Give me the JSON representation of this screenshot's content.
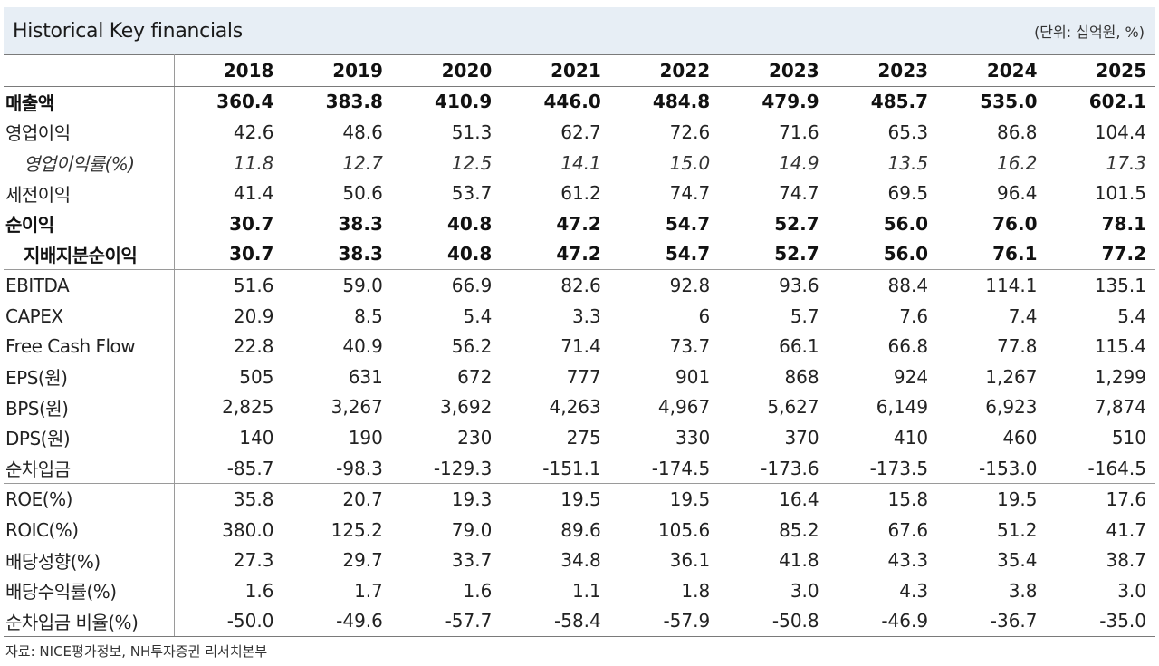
{
  "header": {
    "title": "Historical Key financials",
    "unit": "(단위: 십억원, %)"
  },
  "table": {
    "years": [
      "2018",
      "2019",
      "2020",
      "2021",
      "2022",
      "2023",
      "2023",
      "2024",
      "2025"
    ],
    "rows": [
      {
        "label": "매출액",
        "style": "bold",
        "values": [
          "360.4",
          "383.8",
          "410.9",
          "446.0",
          "484.8",
          "479.9",
          "485.7",
          "535.0",
          "602.1"
        ]
      },
      {
        "label": "영업이익",
        "style": "",
        "values": [
          "42.6",
          "48.6",
          "51.3",
          "62.7",
          "72.6",
          "71.6",
          "65.3",
          "86.8",
          "104.4"
        ]
      },
      {
        "label": "영업이익률(%)",
        "style": "italic indent",
        "values": [
          "11.8",
          "12.7",
          "12.5",
          "14.1",
          "15.0",
          "14.9",
          "13.5",
          "16.2",
          "17.3"
        ]
      },
      {
        "label": "세전이익",
        "style": "",
        "values": [
          "41.4",
          "50.6",
          "53.7",
          "61.2",
          "74.7",
          "74.7",
          "69.5",
          "96.4",
          "101.5"
        ]
      },
      {
        "label": "순이익",
        "style": "bold",
        "values": [
          "30.7",
          "38.3",
          "40.8",
          "47.2",
          "54.7",
          "52.7",
          "56.0",
          "76.0",
          "78.1"
        ]
      },
      {
        "label": "지배지분순이익",
        "style": "bold indent",
        "values": [
          "30.7",
          "38.3",
          "40.8",
          "47.2",
          "54.7",
          "52.7",
          "56.0",
          "76.1",
          "77.2"
        ]
      },
      {
        "label": "EBITDA",
        "style": "group-start",
        "values": [
          "51.6",
          "59.0",
          "66.9",
          "82.6",
          "92.8",
          "93.6",
          "88.4",
          "114.1",
          "135.1"
        ]
      },
      {
        "label": "CAPEX",
        "style": "",
        "values": [
          "20.9",
          "8.5",
          "5.4",
          "3.3",
          "6",
          "5.7",
          "7.6",
          "7.4",
          "5.4"
        ]
      },
      {
        "label": "Free Cash Flow",
        "style": "",
        "values": [
          "22.8",
          "40.9",
          "56.2",
          "71.4",
          "73.7",
          "66.1",
          "66.8",
          "77.8",
          "115.4"
        ]
      },
      {
        "label": "EPS(원)",
        "style": "",
        "values": [
          "505",
          "631",
          "672",
          "777",
          "901",
          "868",
          "924",
          "1,267",
          "1,299"
        ]
      },
      {
        "label": "BPS(원)",
        "style": "",
        "values": [
          "2,825",
          "3,267",
          "3,692",
          "4,263",
          "4,967",
          "5,627",
          "6,149",
          "6,923",
          "7,874"
        ]
      },
      {
        "label": "DPS(원)",
        "style": "",
        "values": [
          "140",
          "190",
          "230",
          "275",
          "330",
          "370",
          "410",
          "460",
          "510"
        ]
      },
      {
        "label": "순차입금",
        "style": "",
        "values": [
          "-85.7",
          "-98.3",
          "-129.3",
          "-151.1",
          "-174.5",
          "-173.6",
          "-173.5",
          "-153.0",
          "-164.5"
        ]
      },
      {
        "label": "ROE(%)",
        "style": "group-start",
        "values": [
          "35.8",
          "20.7",
          "19.3",
          "19.5",
          "19.5",
          "16.4",
          "15.8",
          "19.5",
          "17.6"
        ]
      },
      {
        "label": "ROIC(%)",
        "style": "",
        "values": [
          "380.0",
          "125.2",
          "79.0",
          "89.6",
          "105.6",
          "85.2",
          "67.6",
          "51.2",
          "41.7"
        ]
      },
      {
        "label": "배당성향(%)",
        "style": "",
        "values": [
          "27.3",
          "29.7",
          "33.7",
          "34.8",
          "36.1",
          "41.8",
          "43.3",
          "35.4",
          "38.7"
        ]
      },
      {
        "label": "배당수익률(%)",
        "style": "",
        "values": [
          "1.6",
          "1.7",
          "1.6",
          "1.1",
          "1.8",
          "3.0",
          "4.3",
          "3.8",
          "3.0"
        ]
      },
      {
        "label": "순차입금 비율(%)",
        "style": "last",
        "values": [
          "-50.0",
          "-49.6",
          "-57.7",
          "-58.4",
          "-57.9",
          "-50.8",
          "-46.9",
          "-36.7",
          "-35.0"
        ]
      }
    ]
  },
  "footer": {
    "source": "자료: NICE평가정보, NH투자증권 리서치본부"
  }
}
